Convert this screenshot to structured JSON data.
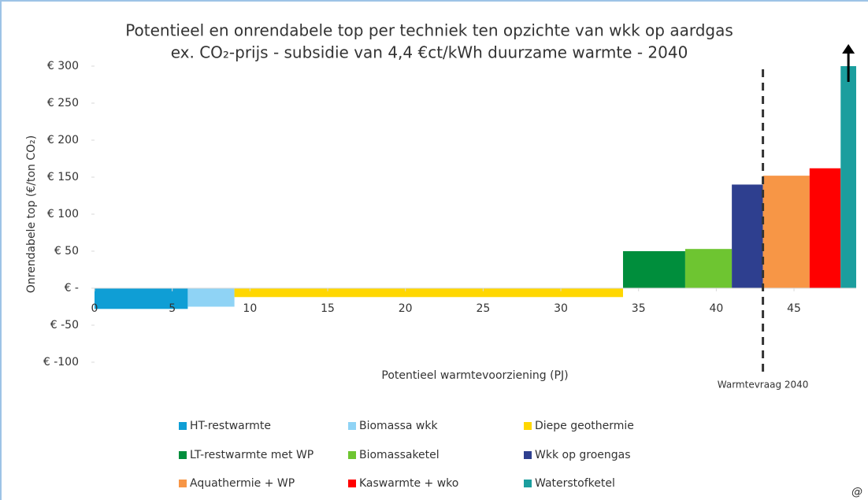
{
  "chart_data": {
    "type": "variable-width-bar",
    "title": "Potentieel en onrendabele top per techniek ten opzichte van wkk op aardgas",
    "subtitle": "ex. CO₂-prijs - subsidie van 4,4 €ct/kWh duurzame warmte - 2040",
    "x_label": "Potentieel warmtevoorziening (PJ)",
    "y_label": "Onrendabele top (€/ton CO₂)",
    "categories": [
      "HT-restwarmte",
      "Biomassa wkk",
      "Diepe geothermie",
      "LT-restwarmte met WP",
      "Biomassaketel",
      "Wkk op groengas",
      "Aquathermie + WP",
      "Kaswarmte + wko",
      "Waterstofketel"
    ],
    "values": [
      -28,
      -25,
      -12,
      50,
      53,
      140,
      152,
      162,
      300
    ],
    "bins": [
      0,
      6,
      9,
      34,
      38,
      41,
      43,
      46,
      48,
      49
    ],
    "colors": [
      "#0f9ed5",
      "#8fd3f5",
      "#ffd700",
      "#008e3c",
      "#6ec531",
      "#2e3f8f",
      "#f79646",
      "#ff0000",
      "#1b9e9e"
    ],
    "xlim": [
      0,
      49
    ],
    "ylim": [
      -100,
      300
    ],
    "xticks": [
      0,
      5,
      10,
      15,
      20,
      25,
      30,
      35,
      40,
      45
    ],
    "yticks": [
      {
        "value": 300,
        "label": "€ 300"
      },
      {
        "value": 250,
        "label": "€ 250"
      },
      {
        "value": 200,
        "label": "€ 200"
      },
      {
        "value": 150,
        "label": "€ 150"
      },
      {
        "value": 100,
        "label": "€ 100"
      },
      {
        "value": 50,
        "label": "€ 50"
      },
      {
        "value": 0,
        "label": "€ -"
      },
      {
        "value": -50,
        "label": "€ -50"
      },
      {
        "value": -100,
        "label": "€ -100"
      }
    ],
    "vline": {
      "x": 43,
      "label": "Warmtevraag 2040"
    },
    "grid": false,
    "legend": "bottom"
  }
}
